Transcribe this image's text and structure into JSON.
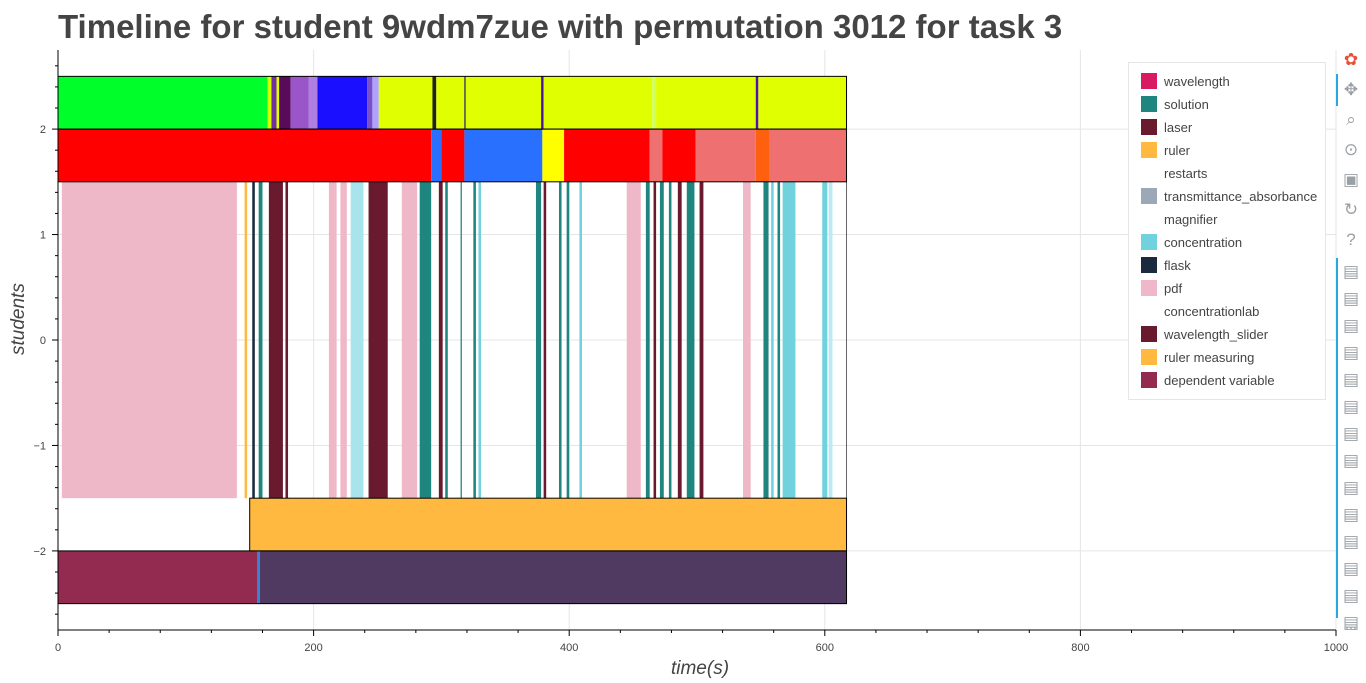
{
  "chart_data": {
    "type": "timeline",
    "title": "Timeline for student 9wdm7zue with permutation 3012 for task 3",
    "xlabel": "time(s)",
    "ylabel": "students",
    "xlim": [
      0,
      1000
    ],
    "ylim": [
      -2.75,
      2.75
    ],
    "x_ticks": [
      0,
      200,
      400,
      600,
      800,
      1000
    ],
    "x_tick_labels": [
      "0",
      "200",
      "400",
      "600",
      "800",
      "1000"
    ],
    "y_ticks": [
      -2,
      -1,
      0,
      1,
      2
    ],
    "y_tick_labels": [
      "−2",
      "−1",
      "0",
      "1",
      "2"
    ],
    "grid": true,
    "legend_position": "top-right",
    "legend": [
      {
        "label": "wavelength",
        "color": "#d81b60"
      },
      {
        "label": "solution",
        "color": "#1f857f"
      },
      {
        "label": "laser",
        "color": "#6a1a2e"
      },
      {
        "label": "ruler",
        "color": "#ffb940"
      },
      {
        "label": "restarts",
        "color": "#ffffff"
      },
      {
        "label": "transmittance_absorbance",
        "color": "#9aa8b8"
      },
      {
        "label": "magnifier",
        "color": "#ffffff"
      },
      {
        "label": "concentration",
        "color": "#6fd2dc"
      },
      {
        "label": "flask",
        "color": "#1a2b40"
      },
      {
        "label": "pdf",
        "color": "#efb8c8"
      },
      {
        "label": "concentrationlab",
        "color": "#ffffff"
      },
      {
        "label": "wavelength_slider",
        "color": "#6a1a2e"
      },
      {
        "label": "ruler measuring",
        "color": "#ffb940"
      },
      {
        "label": "dependent variable",
        "color": "#932a50"
      }
    ],
    "rows": [
      {
        "y_from": 2,
        "y_to": 2.5,
        "segments": [
          {
            "start": 0,
            "end": 164,
            "color": "#00ff2a"
          },
          {
            "start": 164,
            "end": 167,
            "color": "#d6ff00"
          },
          {
            "start": 167,
            "end": 171,
            "color": "#7030a0"
          },
          {
            "start": 171,
            "end": 173,
            "color": "#e0ff00"
          },
          {
            "start": 173,
            "end": 182,
            "color": "#5a0a5a"
          },
          {
            "start": 182,
            "end": 196,
            "color": "#9a55c8"
          },
          {
            "start": 196,
            "end": 203,
            "color": "#b080e0"
          },
          {
            "start": 203,
            "end": 242,
            "color": "#1a10ff"
          },
          {
            "start": 242,
            "end": 246,
            "color": "#7a50c8"
          },
          {
            "start": 246,
            "end": 251,
            "color": "#b0a0ff"
          },
          {
            "start": 251,
            "end": 293,
            "color": "#e0ff00"
          },
          {
            "start": 293,
            "end": 296,
            "color": "#222222"
          },
          {
            "start": 296,
            "end": 318,
            "color": "#e0ff00"
          },
          {
            "start": 318,
            "end": 319,
            "color": "#101060"
          },
          {
            "start": 319,
            "end": 378,
            "color": "#e0ff00"
          },
          {
            "start": 378,
            "end": 380,
            "color": "#5010a0"
          },
          {
            "start": 380,
            "end": 465,
            "color": "#e0ff00"
          },
          {
            "start": 465,
            "end": 468,
            "color": "#d0ff60"
          },
          {
            "start": 468,
            "end": 546,
            "color": "#e0ff00"
          },
          {
            "start": 546,
            "end": 548,
            "color": "#5010a0"
          },
          {
            "start": 548,
            "end": 617,
            "color": "#e0ff00"
          }
        ]
      },
      {
        "y_from": 1.5,
        "y_to": 2,
        "segments": [
          {
            "start": 0,
            "end": 292,
            "color": "#ff0000"
          },
          {
            "start": 292,
            "end": 300,
            "color": "#2a70ff"
          },
          {
            "start": 300,
            "end": 318,
            "color": "#ff0000"
          },
          {
            "start": 318,
            "end": 379,
            "color": "#2a70ff"
          },
          {
            "start": 379,
            "end": 396,
            "color": "#ffff00"
          },
          {
            "start": 396,
            "end": 463,
            "color": "#ff0000"
          },
          {
            "start": 463,
            "end": 473,
            "color": "#ee7070"
          },
          {
            "start": 473,
            "end": 499,
            "color": "#ff0000"
          },
          {
            "start": 499,
            "end": 546,
            "color": "#ee7070"
          },
          {
            "start": 546,
            "end": 557,
            "color": "#ff6010"
          },
          {
            "start": 557,
            "end": 617,
            "color": "#ee7070"
          }
        ]
      },
      {
        "y_from": -1.5,
        "y_to": 1.5,
        "segments": [
          {
            "start": 3,
            "end": 140,
            "color": "#efb8c8"
          },
          {
            "start": 146,
            "end": 148,
            "color": "#ffb940"
          },
          {
            "start": 152,
            "end": 154,
            "color": "#1a2b40"
          },
          {
            "start": 157,
            "end": 160,
            "color": "#1f857f"
          },
          {
            "start": 165,
            "end": 176,
            "color": "#6a1a2e"
          },
          {
            "start": 178,
            "end": 180,
            "color": "#6a1a2e"
          },
          {
            "start": 212,
            "end": 218,
            "color": "#efb8c8"
          },
          {
            "start": 221,
            "end": 226,
            "color": "#efb8c8"
          },
          {
            "start": 229,
            "end": 239,
            "color": "#a8e4ec"
          },
          {
            "start": 243,
            "end": 258,
            "color": "#6a1a2e"
          },
          {
            "start": 269,
            "end": 281,
            "color": "#efb8c8"
          },
          {
            "start": 283,
            "end": 292,
            "color": "#1f857f"
          },
          {
            "start": 298,
            "end": 301,
            "color": "#6a1a2e"
          },
          {
            "start": 303,
            "end": 305,
            "color": "#1f857f"
          },
          {
            "start": 315,
            "end": 316,
            "color": "#1f857f"
          },
          {
            "start": 325,
            "end": 327,
            "color": "#1f857f"
          },
          {
            "start": 329,
            "end": 331,
            "color": "#6fd2dc"
          },
          {
            "start": 374,
            "end": 378,
            "color": "#1f857f"
          },
          {
            "start": 380,
            "end": 382,
            "color": "#6a1a2e"
          },
          {
            "start": 392,
            "end": 394,
            "color": "#1f857f"
          },
          {
            "start": 398,
            "end": 400,
            "color": "#1f857f"
          },
          {
            "start": 408,
            "end": 410,
            "color": "#6fd2dc"
          },
          {
            "start": 445,
            "end": 456,
            "color": "#efb8c8"
          },
          {
            "start": 460,
            "end": 463,
            "color": "#1f857f"
          },
          {
            "start": 466,
            "end": 468,
            "color": "#6a1a2e"
          },
          {
            "start": 471,
            "end": 474,
            "color": "#1f857f"
          },
          {
            "start": 478,
            "end": 480,
            "color": "#1f857f"
          },
          {
            "start": 485,
            "end": 488,
            "color": "#6a1a2e"
          },
          {
            "start": 492,
            "end": 498,
            "color": "#1f857f"
          },
          {
            "start": 502,
            "end": 505,
            "color": "#6a1a2e"
          },
          {
            "start": 536,
            "end": 542,
            "color": "#efb8c8"
          },
          {
            "start": 552,
            "end": 556,
            "color": "#1f857f"
          },
          {
            "start": 558,
            "end": 560,
            "color": "#6fd2dc"
          },
          {
            "start": 563,
            "end": 565,
            "color": "#1f857f"
          },
          {
            "start": 567,
            "end": 577,
            "color": "#6fd2dc"
          },
          {
            "start": 598,
            "end": 602,
            "color": "#6fd2dc"
          },
          {
            "start": 603,
            "end": 606,
            "color": "#bdeaf0"
          }
        ]
      },
      {
        "y_from": -2,
        "y_to": -1.5,
        "segments": [
          {
            "start": 150,
            "end": 617,
            "color": "#ffb940"
          }
        ]
      },
      {
        "y_from": -2.5,
        "y_to": -2,
        "segments": [
          {
            "start": 0,
            "end": 156,
            "color": "#932a50"
          },
          {
            "start": 156,
            "end": 158,
            "color": "#3a80d0"
          },
          {
            "start": 158,
            "end": 617,
            "color": "#503a62"
          }
        ]
      }
    ]
  },
  "toolbar": {
    "tools": [
      "bokeh-logo-icon",
      "pan-icon",
      "zoom-icon",
      "wheel-zoom-icon",
      "save-icon",
      "reset-icon",
      "help-icon",
      "hover-icon",
      "hover-icon",
      "hover-icon",
      "hover-icon",
      "hover-icon",
      "hover-icon",
      "hover-icon",
      "hover-icon",
      "hover-icon",
      "hover-icon",
      "hover-icon",
      "hover-icon",
      "hover-icon",
      "hover-icon",
      "more-icon"
    ]
  }
}
